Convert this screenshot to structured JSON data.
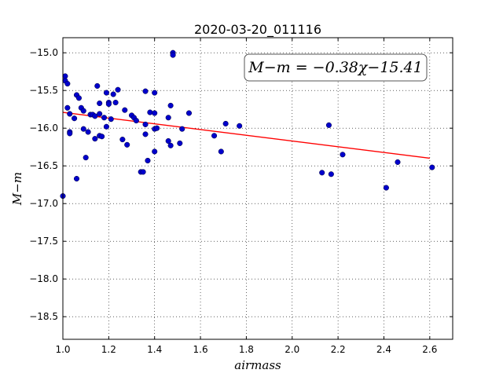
{
  "chart_data": {
    "type": "scatter",
    "title": "2020-03-20_011116",
    "xlabel": "airmass",
    "ylabel": "M−m",
    "xlim": [
      1.0,
      2.7
    ],
    "ylim": [
      -18.8,
      -14.8
    ],
    "y_inverted": true,
    "grid": true,
    "grid_style": "dotted",
    "x_ticks": [
      1.0,
      1.2,
      1.4,
      1.6,
      1.8,
      2.0,
      2.2,
      2.4,
      2.6
    ],
    "x_tick_labels": [
      "1.0",
      "1.2",
      "1.4",
      "1.6",
      "1.8",
      "2.0",
      "2.2",
      "2.4",
      "2.6"
    ],
    "y_ticks": [
      -15.0,
      -15.5,
      -16.0,
      -16.5,
      -17.0,
      -17.5,
      -18.0,
      -18.5
    ],
    "y_tick_labels": [
      "−15.0",
      "−15.5",
      "−16.0",
      "−16.5",
      "−17.0",
      "−17.5",
      "−18.0",
      "−18.5"
    ],
    "annotation": "M−m = −0.38χ−15.41",
    "annotation_placement": "top-right",
    "fit": {
      "slope": -0.38,
      "intercept": -15.41,
      "x_range": [
        1.0,
        2.6
      ],
      "color": "#ff0000"
    },
    "point_color": "#0000cc",
    "points": [
      [
        1.0,
        -16.9
      ],
      [
        1.01,
        -15.31
      ],
      [
        1.01,
        -15.37
      ],
      [
        1.02,
        -15.41
      ],
      [
        1.02,
        -15.73
      ],
      [
        1.03,
        -15.81
      ],
      [
        1.03,
        -16.05
      ],
      [
        1.03,
        -16.07
      ],
      [
        1.05,
        -15.87
      ],
      [
        1.06,
        -16.67
      ],
      [
        1.06,
        -15.56
      ],
      [
        1.07,
        -15.6
      ],
      [
        1.08,
        -15.73
      ],
      [
        1.09,
        -15.77
      ],
      [
        1.09,
        -16.01
      ],
      [
        1.1,
        -16.39
      ],
      [
        1.11,
        -16.05
      ],
      [
        1.12,
        -15.82
      ],
      [
        1.13,
        -15.82
      ],
      [
        1.14,
        -16.14
      ],
      [
        1.14,
        -15.84
      ],
      [
        1.15,
        -15.44
      ],
      [
        1.16,
        -15.67
      ],
      [
        1.16,
        -15.81
      ],
      [
        1.16,
        -16.1
      ],
      [
        1.17,
        -16.11
      ],
      [
        1.18,
        -15.86
      ],
      [
        1.19,
        -15.98
      ],
      [
        1.19,
        -15.53
      ],
      [
        1.2,
        -15.66
      ],
      [
        1.2,
        -15.68
      ],
      [
        1.21,
        -15.88
      ],
      [
        1.22,
        -15.55
      ],
      [
        1.23,
        -15.66
      ],
      [
        1.24,
        -15.49
      ],
      [
        1.26,
        -16.15
      ],
      [
        1.27,
        -15.76
      ],
      [
        1.28,
        -16.22
      ],
      [
        1.3,
        -15.83
      ],
      [
        1.31,
        -15.86
      ],
      [
        1.32,
        -15.9
      ],
      [
        1.34,
        -16.58
      ],
      [
        1.35,
        -16.58
      ],
      [
        1.36,
        -15.51
      ],
      [
        1.36,
        -15.95
      ],
      [
        1.36,
        -16.08
      ],
      [
        1.37,
        -16.43
      ],
      [
        1.38,
        -15.79
      ],
      [
        1.4,
        -15.8
      ],
      [
        1.4,
        -15.53
      ],
      [
        1.4,
        -16.01
      ],
      [
        1.4,
        -16.31
      ],
      [
        1.41,
        -16.0
      ],
      [
        1.46,
        -16.17
      ],
      [
        1.46,
        -15.86
      ],
      [
        1.47,
        -15.7
      ],
      [
        1.47,
        -16.23
      ],
      [
        1.48,
        -15.0
      ],
      [
        1.48,
        -15.03
      ],
      [
        1.51,
        -16.2
      ],
      [
        1.52,
        -16.01
      ],
      [
        1.55,
        -15.8
      ],
      [
        1.66,
        -16.1
      ],
      [
        1.69,
        -16.31
      ],
      [
        1.71,
        -15.94
      ],
      [
        1.77,
        -15.97
      ],
      [
        2.13,
        -16.59
      ],
      [
        2.16,
        -15.96
      ],
      [
        2.17,
        -16.61
      ],
      [
        2.22,
        -16.35
      ],
      [
        2.41,
        -16.79
      ],
      [
        2.46,
        -16.45
      ],
      [
        2.61,
        -16.52
      ]
    ]
  }
}
